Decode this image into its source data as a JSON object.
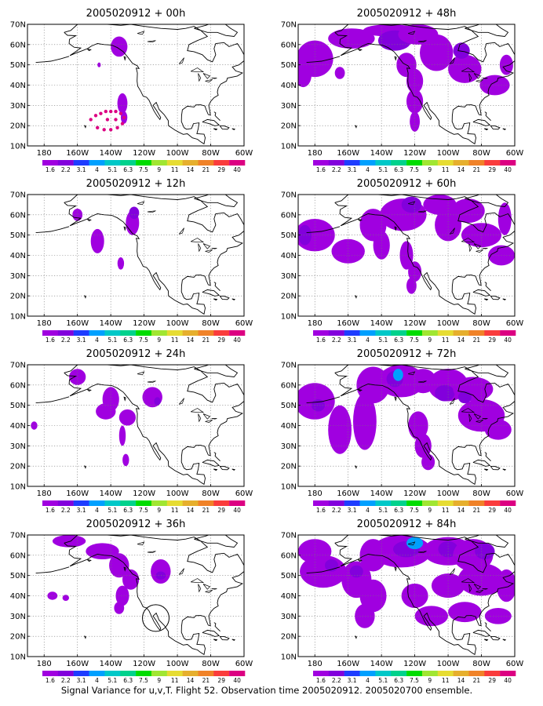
{
  "caption": "Signal Variance for u,v,T. Flight 52. Observation time 2005020912. 2005020700 ensemble.",
  "axes": {
    "lon_ticks": [
      "180",
      "160W",
      "140W",
      "120W",
      "100W",
      "80W",
      "60W"
    ],
    "lat_ticks": [
      "10N",
      "20N",
      "30N",
      "40N",
      "50N",
      "60N",
      "70N"
    ],
    "lon_range": [
      -190,
      -60
    ],
    "lat_range": [
      10,
      70
    ],
    "grid": "dotted"
  },
  "colorbar": {
    "labels": [
      "1.6",
      "2.2",
      "3.1",
      "4",
      "5.1",
      "6.3",
      "7.5",
      "9",
      "11",
      "14",
      "21",
      "29",
      "40"
    ],
    "colors": [
      "#a000e0",
      "#8200dc",
      "#1e3cff",
      "#00a0ff",
      "#00c8c8",
      "#00d28c",
      "#00dc00",
      "#a0e632",
      "#e6dc32",
      "#e6af2d",
      "#f08228",
      "#fa3c3c",
      "#dc0082"
    ]
  },
  "panels": [
    {
      "id": "p00",
      "title": "2005020912 + 00h",
      "col": 0,
      "row": 0,
      "blobs": [
        [
          -135,
          59,
          5,
          5,
          0
        ],
        [
          -147,
          50,
          1,
          1.2,
          0
        ],
        [
          -133,
          31,
          3,
          5,
          0
        ],
        [
          -132,
          24,
          2,
          3,
          0
        ]
      ],
      "dots": [
        [
          -152,
          23
        ],
        [
          -149,
          25
        ],
        [
          -146,
          26
        ],
        [
          -143,
          27
        ],
        [
          -140,
          27
        ],
        [
          -137,
          27
        ],
        [
          -134,
          26
        ],
        [
          -132,
          24
        ],
        [
          -133,
          21
        ],
        [
          -136,
          19
        ],
        [
          -140,
          18
        ],
        [
          -144,
          18
        ],
        [
          -148,
          19
        ],
        [
          -137,
          23
        ],
        [
          -142,
          23
        ]
      ]
    },
    {
      "id": "p48",
      "title": "2005020912 + 48h",
      "col": 1,
      "row": 0,
      "blobs": [
        [
          -180,
          53,
          11,
          9,
          0
        ],
        [
          -187,
          45,
          5,
          6,
          0
        ],
        [
          -165,
          46,
          3,
          3,
          0
        ],
        [
          -158,
          63,
          14,
          5,
          0
        ],
        [
          -135,
          67,
          16,
          3,
          0
        ],
        [
          -132,
          62,
          10,
          5,
          1
        ],
        [
          -118,
          65,
          12,
          5,
          0
        ],
        [
          -107,
          56,
          10,
          9,
          0
        ],
        [
          -125,
          50,
          6,
          6,
          0
        ],
        [
          -120,
          42,
          5,
          6,
          0
        ],
        [
          -120,
          32,
          5,
          6,
          0
        ],
        [
          -120,
          22,
          3,
          5,
          0
        ],
        [
          -90,
          48,
          10,
          7,
          0
        ],
        [
          -72,
          40,
          9,
          5,
          0
        ],
        [
          -65,
          50,
          4,
          5,
          0
        ],
        [
          -92,
          57,
          5,
          4,
          1
        ]
      ]
    },
    {
      "id": "p12",
      "title": "2005020912 + 12h",
      "col": 0,
      "row": 1,
      "blobs": [
        [
          -160,
          60,
          3,
          3,
          0
        ],
        [
          -148,
          47,
          4,
          6,
          0
        ],
        [
          -127,
          56,
          4,
          6,
          0
        ],
        [
          -126,
          61,
          3,
          3,
          1
        ],
        [
          -134,
          36,
          2,
          3,
          0
        ]
      ],
      "dots": []
    },
    {
      "id": "p60",
      "title": "2005020912 + 60h",
      "col": 1,
      "row": 1,
      "blobs": [
        [
          -180,
          50,
          12,
          8,
          0
        ],
        [
          -186,
          50,
          4,
          5,
          1
        ],
        [
          -160,
          42,
          10,
          6,
          0
        ],
        [
          -145,
          55,
          8,
          8,
          0
        ],
        [
          -140,
          45,
          5,
          7,
          0
        ],
        [
          -127,
          60,
          14,
          8,
          0
        ],
        [
          -122,
          65,
          6,
          4,
          1
        ],
        [
          -105,
          65,
          10,
          5,
          0
        ],
        [
          -100,
          55,
          8,
          8,
          0
        ],
        [
          -88,
          62,
          10,
          6,
          0
        ],
        [
          -80,
          50,
          12,
          6,
          0
        ],
        [
          -68,
          40,
          8,
          5,
          0
        ],
        [
          -66,
          58,
          4,
          8,
          0
        ],
        [
          -125,
          40,
          4,
          7,
          0
        ],
        [
          -120,
          32,
          4,
          5,
          0
        ],
        [
          -122,
          25,
          3,
          4,
          0
        ]
      ]
    },
    {
      "id": "p24",
      "title": "2005020912 + 24h",
      "col": 0,
      "row": 2,
      "blobs": [
        [
          -160,
          64,
          5,
          4,
          0
        ],
        [
          -140,
          53,
          5,
          6,
          0
        ],
        [
          -143,
          47,
          6,
          4,
          0
        ],
        [
          -130,
          44,
          5,
          4,
          0
        ],
        [
          -133,
          35,
          2,
          5,
          0
        ],
        [
          -131,
          23,
          2,
          3,
          0
        ],
        [
          -115,
          54,
          6,
          5,
          0
        ],
        [
          -112,
          52,
          2,
          2,
          1
        ],
        [
          -186,
          40,
          2,
          2,
          0
        ]
      ],
      "dots": []
    },
    {
      "id": "p72",
      "title": "2005020912 + 72h",
      "col": 1,
      "row": 2,
      "blobs": [
        [
          -180,
          52,
          12,
          9,
          0
        ],
        [
          -178,
          50,
          4,
          3,
          1
        ],
        [
          -165,
          38,
          7,
          12,
          0
        ],
        [
          -150,
          42,
          7,
          14,
          0
        ],
        [
          -145,
          60,
          10,
          9,
          0
        ],
        [
          -128,
          62,
          14,
          8,
          0
        ],
        [
          -132,
          63,
          5,
          4,
          1
        ],
        [
          -130,
          65,
          3,
          3,
          2
        ],
        [
          -115,
          62,
          8,
          6,
          0
        ],
        [
          -100,
          60,
          12,
          8,
          0
        ],
        [
          -102,
          56,
          6,
          4,
          1
        ],
        [
          -85,
          58,
          12,
          6,
          0
        ],
        [
          -80,
          45,
          14,
          8,
          0
        ],
        [
          -70,
          38,
          8,
          5,
          0
        ],
        [
          -118,
          40,
          6,
          7,
          0
        ],
        [
          -115,
          30,
          5,
          6,
          0
        ],
        [
          -112,
          22,
          4,
          4,
          0
        ],
        [
          -90,
          54,
          4,
          3,
          1
        ]
      ]
    },
    {
      "id": "p36",
      "title": "2005020912 + 36h",
      "col": 0,
      "row": 3,
      "blobs": [
        [
          -165,
          67,
          10,
          3,
          0
        ],
        [
          -145,
          62,
          10,
          4,
          0
        ],
        [
          -135,
          55,
          6,
          6,
          0
        ],
        [
          -128,
          48,
          5,
          5,
          0
        ],
        [
          -133,
          40,
          4,
          5,
          0
        ],
        [
          -135,
          34,
          3,
          3,
          0
        ],
        [
          -110,
          52,
          6,
          6,
          0
        ],
        [
          -110,
          50,
          3,
          2,
          1
        ],
        [
          -175,
          40,
          3,
          2,
          0
        ],
        [
          -167,
          39,
          2,
          1.5,
          0
        ]
      ],
      "dots": [],
      "circle": [
        -113,
        29,
        8
      ]
    },
    {
      "id": "p84",
      "title": "2005020912 + 84h",
      "col": 1,
      "row": 3,
      "blobs": [
        [
          -180,
          62,
          10,
          6,
          0
        ],
        [
          -175,
          52,
          14,
          8,
          0
        ],
        [
          -155,
          48,
          9,
          9,
          0
        ],
        [
          -145,
          40,
          8,
          8,
          0
        ],
        [
          -150,
          30,
          6,
          6,
          0
        ],
        [
          -145,
          60,
          8,
          8,
          0
        ],
        [
          -128,
          62,
          18,
          8,
          0
        ],
        [
          -125,
          63,
          8,
          4,
          1
        ],
        [
          -120,
          66,
          5,
          3,
          2
        ],
        [
          -100,
          62,
          15,
          7,
          0
        ],
        [
          -100,
          63,
          6,
          4,
          1
        ],
        [
          -85,
          60,
          12,
          8,
          0
        ],
        [
          -78,
          62,
          6,
          4,
          1
        ],
        [
          -80,
          48,
          14,
          8,
          0
        ],
        [
          -65,
          45,
          6,
          8,
          0
        ],
        [
          -100,
          45,
          10,
          6,
          0
        ],
        [
          -120,
          40,
          8,
          6,
          0
        ],
        [
          -110,
          30,
          10,
          5,
          0
        ],
        [
          -90,
          32,
          10,
          5,
          0
        ],
        [
          -70,
          30,
          8,
          4,
          0
        ],
        [
          -155,
          52,
          4,
          3,
          1
        ],
        [
          -170,
          55,
          4,
          3,
          1
        ]
      ]
    }
  ]
}
